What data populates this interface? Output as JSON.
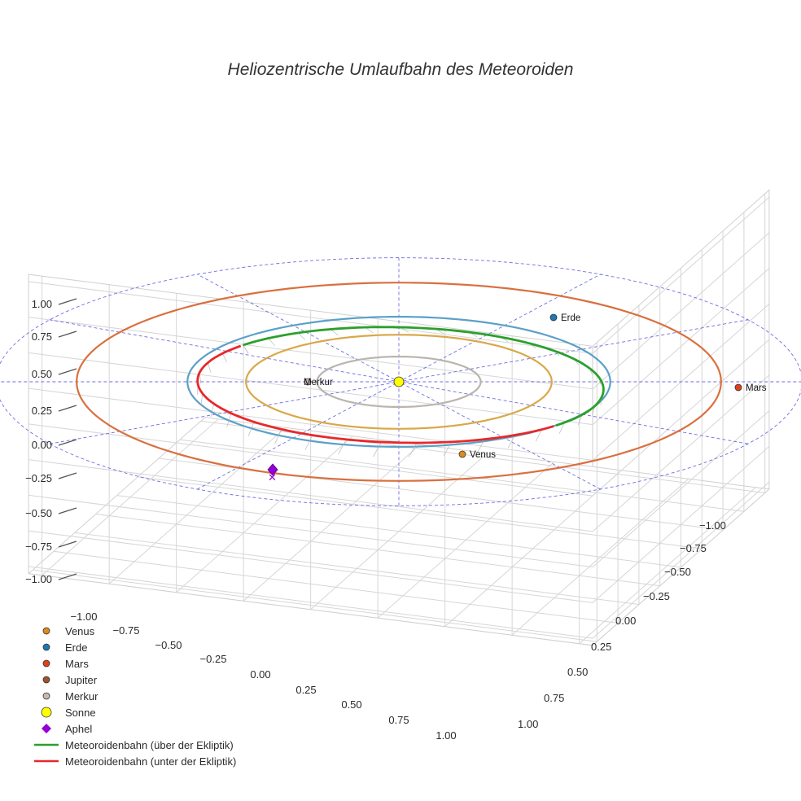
{
  "chart_data": {
    "type": "3d-line",
    "title": "Heliozentrische Umlaufbahn des Meteoroiden",
    "axes": {
      "x": {
        "ticks": [
          "−1.00",
          "−0.75",
          "−0.50",
          "−0.25",
          "0.00",
          "0.25",
          "0.50",
          "0.75",
          "1.00"
        ],
        "range": [
          -1.05,
          1.05
        ]
      },
      "y": {
        "ticks": [
          "−1.00",
          "−0.75",
          "−0.50",
          "−0.25",
          "0.00",
          "0.25",
          "0.50",
          "0.75",
          "1.00"
        ],
        "range": [
          -1.05,
          1.05
        ]
      },
      "z": {
        "ticks": [
          "1.00",
          "0.75",
          "0.50",
          "0.25",
          "0.00",
          "−0.25",
          "−0.50",
          "−0.75",
          "−1.00"
        ],
        "range": [
          -1.05,
          1.05
        ]
      }
    },
    "grid": true,
    "ecliptic_plane": {
      "color": "#5555dd",
      "style": "dashed"
    },
    "orbits": [
      {
        "name": "Merkur",
        "color": "#bbb4ae",
        "radius": 0.387
      },
      {
        "name": "Venus",
        "color": "#d9a84a",
        "radius": 0.723
      },
      {
        "name": "Erde",
        "color": "#5aa0c8",
        "radius": 1.0
      },
      {
        "name": "Mars",
        "color": "#d9703f",
        "radius": 1.524
      }
    ],
    "bodies": [
      {
        "name": "Venus",
        "label": "Venus",
        "color": "#e08a1e",
        "position": [
          0.35,
          -0.52,
          0.0
        ]
      },
      {
        "name": "Erde",
        "label": "Erde",
        "color": "#1f77b4",
        "position": [
          0.78,
          0.62,
          0.0
        ]
      },
      {
        "name": "Mars",
        "label": "Mars",
        "color": "#e0401a",
        "position": [
          1.52,
          0.0,
          0.0
        ]
      },
      {
        "name": "Jupiter",
        "label": "",
        "color": "#a0522d",
        "position": null
      },
      {
        "name": "Merkur",
        "label": "Merkur",
        "color": "#c8b8b0",
        "position": [
          -0.23,
          0.0,
          0.0
        ]
      },
      {
        "name": "Sonne",
        "label": "",
        "color": "#ffff00",
        "position": [
          0.0,
          0.0,
          0.0
        ]
      }
    ],
    "aphel": {
      "name": "Aphel",
      "color": "#9400d3",
      "position": [
        -0.72,
        -0.75,
        0.0
      ]
    },
    "meteoroid_orbit": {
      "semi_major_axis": 0.96,
      "eccentricity": 0.04,
      "angle_start_deg": -47,
      "above": {
        "name": "Meteoroidenbahn (über der Ekliptik)",
        "color": "#2ca02c",
        "angle_range_deg": [
          -140,
          45
        ]
      },
      "below": {
        "name": "Meteoroidenbahn (unter der Ekliptik)",
        "color": "#e8282a",
        "angle_range_deg": [
          45,
          220
        ]
      }
    }
  },
  "legend": [
    {
      "label": "Venus",
      "symbol": "circle",
      "color": "#e08a1e"
    },
    {
      "label": "Erde",
      "symbol": "circle",
      "color": "#1f77b4"
    },
    {
      "label": "Mars",
      "symbol": "circle",
      "color": "#e0401a"
    },
    {
      "label": "Jupiter",
      "symbol": "circle",
      "color": "#a0522d"
    },
    {
      "label": "Merkur",
      "symbol": "circle",
      "color": "#c8b8b0"
    },
    {
      "label": "Sonne",
      "symbol": "big-circle",
      "color": "#ffff00"
    },
    {
      "label": "Aphel",
      "symbol": "diamond",
      "color": "#9400d3"
    },
    {
      "label": "Meteoroidenbahn (über der Ekliptik)",
      "symbol": "line",
      "color": "#2ca02c"
    },
    {
      "label": "Meteoroidenbahn (unter der Ekliptik)",
      "symbol": "line",
      "color": "#e8282a"
    }
  ]
}
